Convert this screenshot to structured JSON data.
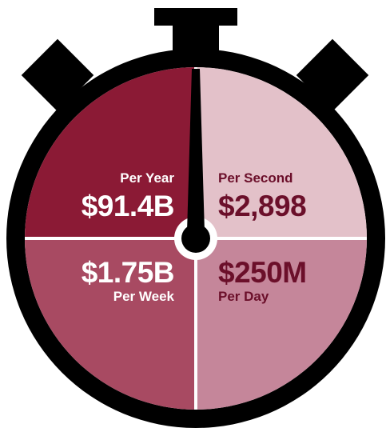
{
  "quadrants": [
    {
      "label": "Per Year",
      "amount": "$91.4B"
    },
    {
      "label": "Per Second",
      "amount": "$2,898"
    },
    {
      "label": "Per Week",
      "amount": "$1.75B"
    },
    {
      "label": "Per Day",
      "amount": "$250M"
    }
  ]
}
